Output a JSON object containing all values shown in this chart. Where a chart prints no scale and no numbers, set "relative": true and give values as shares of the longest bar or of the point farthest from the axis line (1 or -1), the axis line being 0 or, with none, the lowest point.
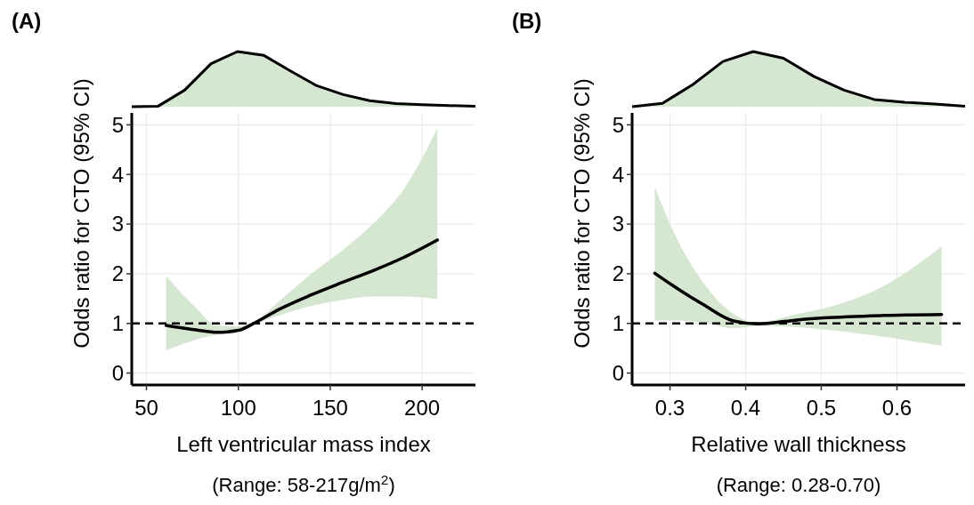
{
  "chart_data": [
    {
      "type": "area",
      "title": "(A)",
      "relative": true,
      "categories": [
        null,
        null,
        null,
        null,
        null,
        null,
        null,
        null,
        null,
        null,
        null,
        null,
        null,
        null
      ],
      "series": [
        {
          "color": "#d5e6d1",
          "values": [
            0,
            0.01,
            0.3,
            0.78,
            1,
            0.93,
            0.65,
            0.38,
            0.22,
            0.11,
            0.055,
            0.035,
            0.02,
            0.01
          ]
        }
      ]
    },
    {
      "type": "line",
      "xlabel": "Left ventricular mass index",
      "ylabel": "Odds ratio for CTO (95% CI)",
      "xlim": [
        42,
        229
      ],
      "ylim": [
        -0.24,
        5.24
      ],
      "xticks": [
        50,
        100,
        150,
        200
      ],
      "yticks": [
        0,
        1,
        2,
        3,
        4,
        5
      ],
      "grid": true,
      "ref_lines": [
        {
          "axis": "y",
          "value": 1,
          "color": "#000000",
          "line_style": "dashed"
        }
      ],
      "annotations": [
        "(Range: 58-217g/m$^{2}$)"
      ],
      "series": [
        {
          "color": "#000000",
          "x": [
            60.7,
            76.8,
            88.6,
            100,
            108.9,
            122,
            139.3,
            156.2,
            173.1,
            190,
            208.3
          ],
          "values": [
            0.96,
            0.87,
            0.82,
            0.86,
            1.01,
            1.28,
            1.57,
            1.82,
            2.06,
            2.33,
            2.68
          ],
          "lower": [
            0.46,
            0.67,
            0.78,
            0.82,
            0.98,
            1.16,
            1.35,
            1.47,
            1.54,
            1.54,
            1.49
          ],
          "upper": [
            1.96,
            1.32,
            0.95,
            0.94,
            1.04,
            1.44,
            1.99,
            2.46,
            3.0,
            3.7,
            4.92
          ]
        }
      ]
    },
    {
      "type": "area",
      "title": "(B)",
      "relative": true,
      "categories": [
        null,
        null,
        null,
        null,
        null,
        null,
        null,
        null,
        null,
        null,
        null,
        null
      ],
      "series": [
        {
          "color": "#d5e6d1",
          "values": [
            0,
            0.06,
            0.4,
            0.82,
            1,
            0.88,
            0.55,
            0.3,
            0.13,
            0.08,
            0.05,
            0.01
          ]
        }
      ]
    },
    {
      "type": "line",
      "xlabel": "Relative wall thickness",
      "ylabel": "Odds ratio for CTO (95% CI)",
      "xlim": [
        0.25,
        0.69
      ],
      "ylim": [
        -0.24,
        5.24
      ],
      "xticks": [
        0.3,
        0.4,
        0.5,
        0.6
      ],
      "yticks": [
        0,
        1,
        2,
        3,
        4,
        5
      ],
      "grid": true,
      "ref_lines": [
        {
          "axis": "y",
          "value": 1,
          "color": "#000000",
          "line_style": "dashed"
        }
      ],
      "annotations": [
        "(Range: 0.28-0.70)"
      ],
      "series": [
        {
          "color": "#000000",
          "x": [
            0.28,
            0.304,
            0.344,
            0.384,
            0.416,
            0.463,
            0.503,
            0.582,
            0.659
          ],
          "values": [
            2.01,
            1.76,
            1.38,
            1.05,
            0.99,
            1.06,
            1.11,
            1.16,
            1.18
          ],
          "lower": [
            1.06,
            1.06,
            1.02,
            0.9,
            0.95,
            0.93,
            0.88,
            0.73,
            0.55
          ],
          "upper": [
            3.75,
            2.87,
            1.82,
            1.19,
            1.02,
            1.17,
            1.3,
            1.75,
            2.55
          ]
        }
      ]
    }
  ]
}
